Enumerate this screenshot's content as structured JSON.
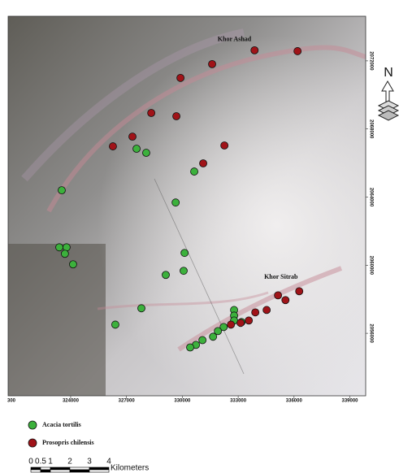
{
  "chart_data": {
    "type": "scatter",
    "xlim": [
      320640,
      339850
    ],
    "ylim": [
      2052330,
      2074620
    ],
    "xticks": [
      324000,
      327000,
      330000,
      333000,
      336000,
      339000
    ],
    "x_cut_label": "300",
    "yticks": [
      2056000,
      2060000,
      2064000,
      2068000,
      2072000
    ],
    "annotations": [
      {
        "text": "Khor Ashad",
        "x": 332800,
        "y": 2073250
      },
      {
        "text": "Khor Sitrab",
        "x": 335300,
        "y": 2059300
      }
    ],
    "series": [
      {
        "name": "Acacia tortilis",
        "color": "#3cb13c",
        "x": [
          327540,
          328060,
          323520,
          330640,
          329640,
          323390,
          323780,
          323690,
          324130,
          330120,
          330070,
          329110,
          327800,
          326400,
          332780,
          332780,
          332780,
          333180,
          332220,
          331910,
          331650,
          331080,
          330730,
          330420
        ],
        "values": [
          2066840,
          2066600,
          2064400,
          2065500,
          2063680,
          2061050,
          2061050,
          2060670,
          2060050,
          2060720,
          2059670,
          2059430,
          2057470,
          2056510,
          2057370,
          2057040,
          2056750,
          2056660,
          2056370,
          2056130,
          2055800,
          2055600,
          2055320,
          2055170
        ]
      },
      {
        "name": "Prosopris chilensis",
        "color": "#a01318",
        "x": [
          333880,
          336190,
          331600,
          329900,
          328330,
          329680,
          327320,
          326270,
          332260,
          331120,
          335140,
          335540,
          336280,
          334530,
          333920,
          333570,
          332610,
          333130
        ],
        "values": [
          2072620,
          2072570,
          2071810,
          2071000,
          2068940,
          2068750,
          2067550,
          2066980,
          2067030,
          2065980,
          2058230,
          2057950,
          2058470,
          2057370,
          2057230,
          2056750,
          2056510,
          2056610
        ]
      }
    ],
    "north_label": "N",
    "scale_bar": {
      "labels": [
        0,
        0.5,
        1,
        2,
        3,
        4
      ],
      "unit": "Kilometers"
    }
  }
}
